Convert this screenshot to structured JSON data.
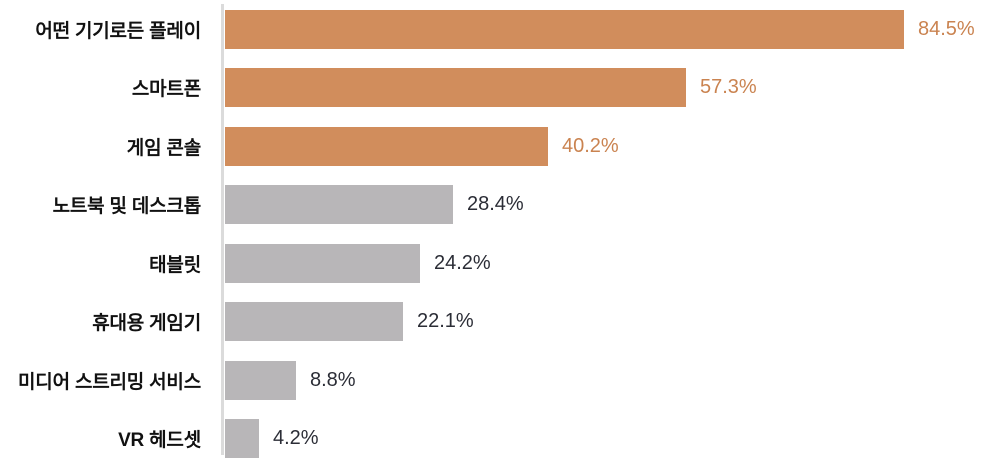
{
  "chart_data": {
    "type": "bar",
    "orientation": "horizontal",
    "title": "",
    "xlabel": "",
    "ylabel": "",
    "xlim": [
      0,
      95
    ],
    "grid": false,
    "legend": "none",
    "categories": [
      "어떤 기기로든 플레이",
      "스마트폰",
      "게임 콘솔",
      "노트북 및 데스크톱",
      "태블릿",
      "휴대용 게임기",
      "미디어 스트리밍 서비스",
      "VR 헤드셋"
    ],
    "values": [
      84.5,
      57.3,
      40.2,
      28.4,
      24.2,
      22.1,
      8.8,
      4.2
    ],
    "value_labels": [
      "84.5%",
      "57.3%",
      "40.2%",
      "28.4%",
      "24.2%",
      "22.1%",
      "8.8%",
      "4.2%"
    ],
    "bar_colors": [
      "#D18D5C",
      "#D18D5C",
      "#D18D5C",
      "#B8B6B8",
      "#B8B6B8",
      "#B8B6B8",
      "#B8B6B8",
      "#B8B6B8"
    ],
    "value_label_colors": [
      "#CA8350",
      "#CA8350",
      "#CA8350",
      "#2B2D36",
      "#2B2D36",
      "#2B2D36",
      "#2B2D36",
      "#2B2D36"
    ]
  },
  "colors": {
    "highlight_bar": "#D18D5C",
    "default_bar": "#B8B6B8",
    "highlight_value_text": "#CA8350",
    "default_value_text": "#2B2D36",
    "category_text": "#111111",
    "axis_line": "#DBDBDB",
    "background": "#FFFFFF"
  }
}
